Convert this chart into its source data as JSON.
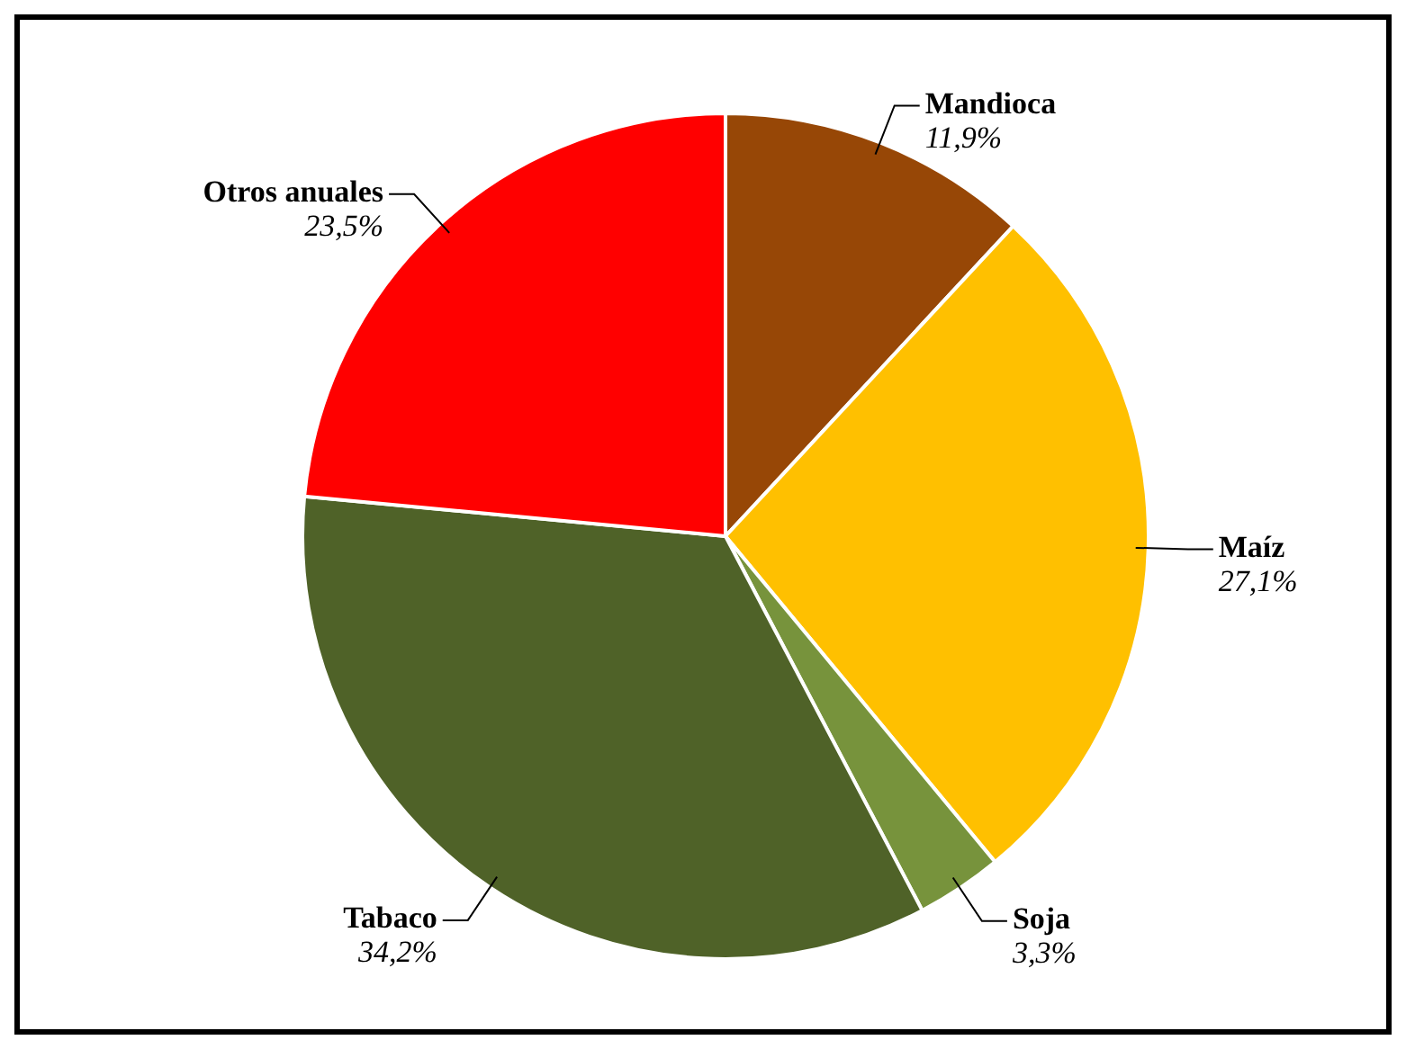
{
  "chart_data": {
    "type": "pie",
    "categories": [
      "Mandioca",
      "Maíz",
      "Soja",
      "Tabaco",
      "Otros anuales"
    ],
    "values": [
      11.9,
      27.1,
      3.3,
      34.2,
      23.5
    ],
    "value_labels": [
      "11,9%",
      "27,1%",
      "3,3%",
      "34,2%",
      "23,5%"
    ],
    "colors": [
      "#974706",
      "#ffc000",
      "#77933c",
      "#4f6228",
      "#ff0000"
    ]
  }
}
